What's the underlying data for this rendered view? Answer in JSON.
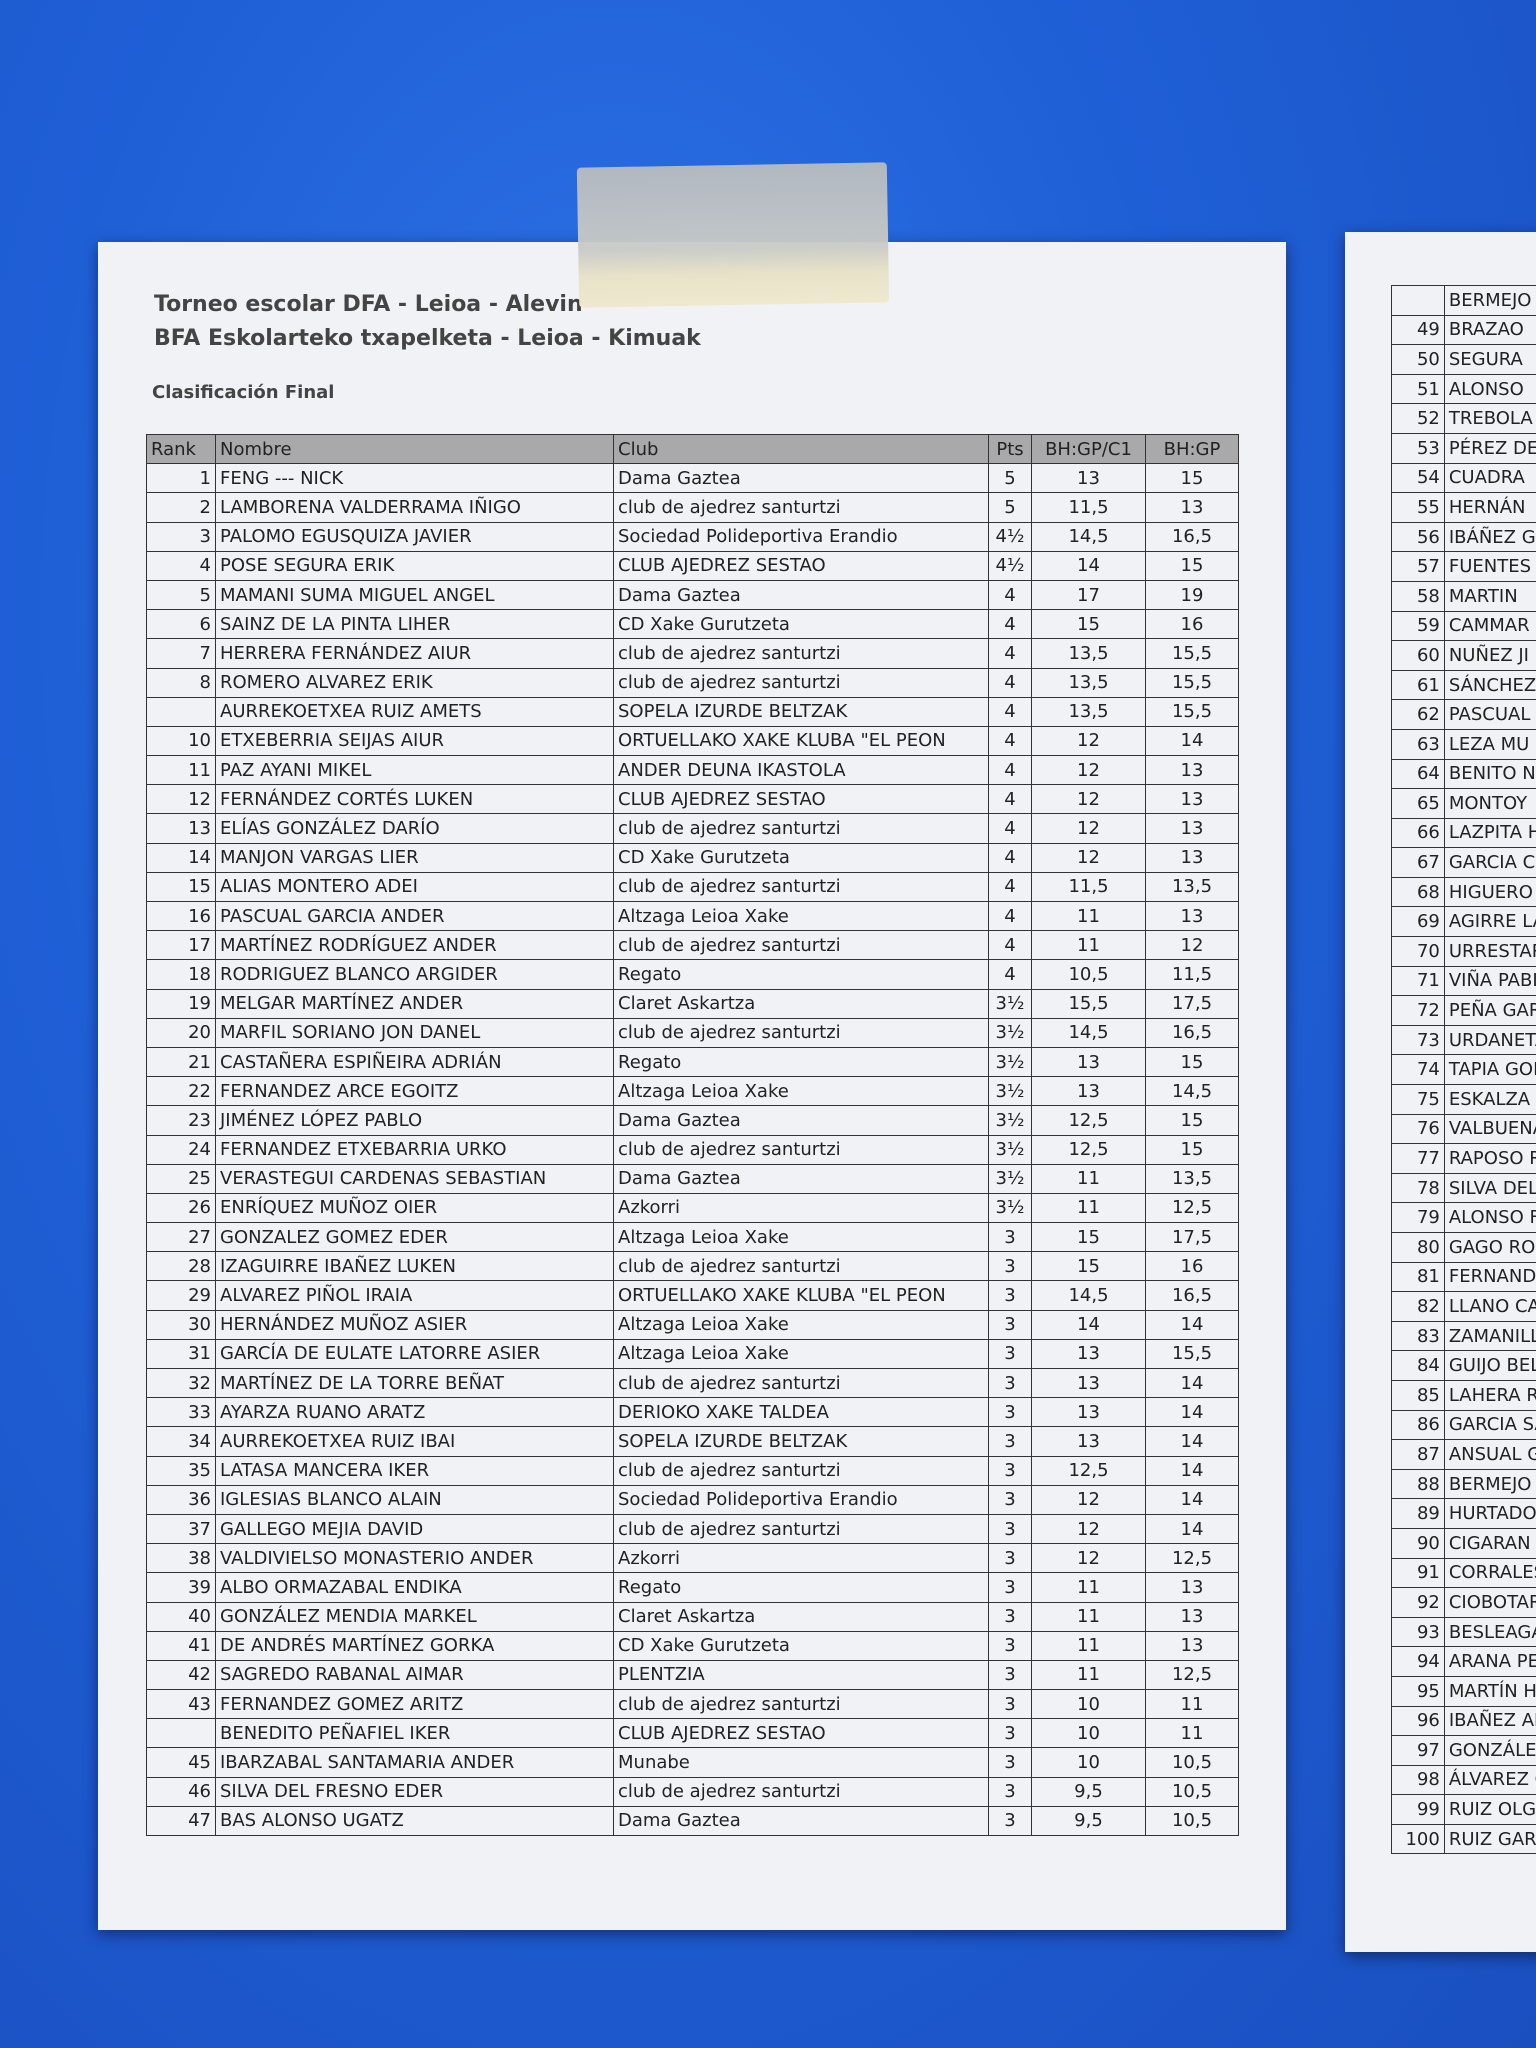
{
  "header": {
    "title": "Torneo escolar DFA - Leioa - Alevin",
    "subtitle": "BFA Eskolarteko txapelketa - Leioa - Kimuak",
    "section": "Clasificación Final"
  },
  "table": {
    "columns": [
      "Rank",
      "Nombre",
      "Club",
      "Pts",
      "BH:GP/C1",
      "BH:GP"
    ],
    "rows": [
      [
        1,
        "FENG --- NICK",
        "Dama Gaztea",
        5,
        13,
        15
      ],
      [
        2,
        "LAMBORENA VALDERRAMA IÑIGO",
        "club de ajedrez santurtzi",
        5,
        "11,5",
        13
      ],
      [
        3,
        "PALOMO EGUSQUIZA JAVIER",
        "Sociedad Polideportiva Erandio",
        "4½",
        "14,5",
        "16,5"
      ],
      [
        4,
        "POSE SEGURA ERIK",
        "CLUB AJEDREZ SESTAO",
        "4½",
        14,
        15
      ],
      [
        5,
        "MAMANI SUMA MIGUEL ANGEL",
        "Dama Gaztea",
        4,
        17,
        19
      ],
      [
        6,
        "SAINZ DE LA PINTA LIHER",
        "CD Xake Gurutzeta",
        4,
        15,
        16
      ],
      [
        7,
        "HERRERA FERNÁNDEZ AIUR",
        "club de ajedrez santurtzi",
        4,
        "13,5",
        "15,5"
      ],
      [
        8,
        "ROMERO ALVAREZ ERIK",
        "club de ajedrez santurtzi",
        4,
        "13,5",
        "15,5"
      ],
      [
        null,
        "AURREKOETXEA RUIZ AMETS",
        "SOPELA IZURDE BELTZAK",
        4,
        "13,5",
        "15,5"
      ],
      [
        10,
        "ETXEBERRIA SEIJAS AIUR",
        "ORTUELLAKO XAKE KLUBA \"EL PEON",
        4,
        12,
        14
      ],
      [
        11,
        "PAZ AYANI MIKEL",
        "ANDER DEUNA IKASTOLA",
        4,
        12,
        13
      ],
      [
        12,
        "FERNÁNDEZ CORTÉS LUKEN",
        "CLUB AJEDREZ SESTAO",
        4,
        12,
        13
      ],
      [
        13,
        "ELÍAS GONZÁLEZ DARÍO",
        "club de ajedrez santurtzi",
        4,
        12,
        13
      ],
      [
        14,
        "MANJON VARGAS LIER",
        "CD Xake Gurutzeta",
        4,
        12,
        13
      ],
      [
        15,
        "ALIAS MONTERO ADEI",
        "club de ajedrez santurtzi",
        4,
        "11,5",
        "13,5"
      ],
      [
        16,
        "PASCUAL GARCIA ANDER",
        "Altzaga Leioa Xake",
        4,
        11,
        13
      ],
      [
        17,
        "MARTÍNEZ RODRÍGUEZ ANDER",
        "club de ajedrez santurtzi",
        4,
        11,
        12
      ],
      [
        18,
        "RODRIGUEZ BLANCO ARGIDER",
        "Regato",
        4,
        "10,5",
        "11,5"
      ],
      [
        19,
        "MELGAR MARTÍNEZ ANDER",
        "Claret Askartza",
        "3½",
        "15,5",
        "17,5"
      ],
      [
        20,
        "MARFIL SORIANO JON DANEL",
        "club de ajedrez santurtzi",
        "3½",
        "14,5",
        "16,5"
      ],
      [
        21,
        "CASTAÑERA ESPIÑEIRA ADRIÁN",
        "Regato",
        "3½",
        13,
        15
      ],
      [
        22,
        "FERNANDEZ ARCE EGOITZ",
        "Altzaga Leioa Xake",
        "3½",
        13,
        "14,5"
      ],
      [
        23,
        "JIMÉNEZ LÓPEZ PABLO",
        "Dama Gaztea",
        "3½",
        "12,5",
        15
      ],
      [
        24,
        "FERNANDEZ ETXEBARRIA URKO",
        "club de ajedrez santurtzi",
        "3½",
        "12,5",
        15
      ],
      [
        25,
        "VERASTEGUI CARDENAS SEBASTIAN",
        "Dama Gaztea",
        "3½",
        11,
        "13,5"
      ],
      [
        26,
        "ENRÍQUEZ MUÑOZ OIER",
        "Azkorri",
        "3½",
        11,
        "12,5"
      ],
      [
        27,
        "GONZALEZ GOMEZ EDER",
        "Altzaga Leioa Xake",
        3,
        15,
        "17,5"
      ],
      [
        28,
        "IZAGUIRRE IBAÑEZ LUKEN",
        "club de ajedrez santurtzi",
        3,
        15,
        16
      ],
      [
        29,
        "ALVAREZ PIÑOL IRAIA",
        "ORTUELLAKO XAKE KLUBA \"EL PEON",
        3,
        "14,5",
        "16,5"
      ],
      [
        30,
        "HERNÁNDEZ MUÑOZ ASIER",
        "Altzaga Leioa Xake",
        3,
        14,
        14
      ],
      [
        31,
        "GARCÍA DE EULATE LATORRE ASIER",
        "Altzaga Leioa Xake",
        3,
        13,
        "15,5"
      ],
      [
        32,
        "MARTÍNEZ DE LA TORRE BEÑAT",
        "club de ajedrez santurtzi",
        3,
        13,
        14
      ],
      [
        33,
        "AYARZA RUANO ARATZ",
        "DERIOKO XAKE TALDEA",
        3,
        13,
        14
      ],
      [
        34,
        "AURREKOETXEA RUIZ IBAI",
        "SOPELA IZURDE BELTZAK",
        3,
        13,
        14
      ],
      [
        35,
        "LATASA MANCERA IKER",
        "club de ajedrez santurtzi",
        3,
        "12,5",
        14
      ],
      [
        36,
        "IGLESIAS BLANCO ALAIN",
        "Sociedad Polideportiva Erandio",
        3,
        12,
        14
      ],
      [
        37,
        "GALLEGO MEJIA DAVID",
        "club de ajedrez santurtzi",
        3,
        12,
        14
      ],
      [
        38,
        "VALDIVIELSO MONASTERIO ANDER",
        "Azkorri",
        3,
        12,
        "12,5"
      ],
      [
        39,
        "ALBO ORMAZABAL ENDIKA",
        "Regato",
        3,
        11,
        13
      ],
      [
        40,
        "GONZÁLEZ MENDIA MARKEL",
        "Claret Askartza",
        3,
        11,
        13
      ],
      [
        41,
        "DE ANDRÉS MARTÍNEZ GORKA",
        "CD Xake Gurutzeta",
        3,
        11,
        13
      ],
      [
        42,
        "SAGREDO RABANAL AIMAR",
        "PLENTZIA",
        3,
        11,
        "12,5"
      ],
      [
        43,
        "FERNANDEZ GOMEZ ARITZ",
        "club de ajedrez santurtzi",
        3,
        10,
        11
      ],
      [
        null,
        "BENEDITO PEÑAFIEL IKER",
        "CLUB AJEDREZ SESTAO",
        3,
        10,
        11
      ],
      [
        45,
        "IBARZABAL SANTAMARIA ANDER",
        "Munabe",
        3,
        10,
        "10,5"
      ],
      [
        46,
        "SILVA DEL FRESNO EDER",
        "club de ajedrez santurtzi",
        3,
        "9,5",
        "10,5"
      ],
      [
        47,
        "BAS ALONSO UGATZ",
        "Dama Gaztea",
        3,
        "9,5",
        "10,5"
      ]
    ]
  },
  "second_sheet": {
    "rows": [
      [
        null,
        "BERMEJO"
      ],
      [
        49,
        "BRAZAO"
      ],
      [
        50,
        "SEGURA"
      ],
      [
        51,
        "ALONSO"
      ],
      [
        52,
        "TREBOLA"
      ],
      [
        53,
        "PÉREZ DE"
      ],
      [
        54,
        "CUADRA"
      ],
      [
        55,
        "HERNÁN"
      ],
      [
        56,
        "IBÁÑEZ G"
      ],
      [
        57,
        "FUENTES"
      ],
      [
        58,
        "MARTIN"
      ],
      [
        59,
        "CAMMAR"
      ],
      [
        60,
        "NUÑEZ JI"
      ],
      [
        61,
        "SÁNCHEZ"
      ],
      [
        62,
        "PASCUAL"
      ],
      [
        63,
        "LEZA MU"
      ],
      [
        64,
        "BENITO N"
      ],
      [
        65,
        "MONTOY"
      ],
      [
        66,
        "LAZPITA H"
      ],
      [
        67,
        "GARCIA C"
      ],
      [
        68,
        "HIGUERO"
      ],
      [
        69,
        "AGIRRE LA"
      ],
      [
        70,
        "URRESTAR"
      ],
      [
        71,
        "VIÑA PABL"
      ],
      [
        72,
        "PEÑA GAR"
      ],
      [
        73,
        "URDANETA"
      ],
      [
        74,
        "TAPIA GON"
      ],
      [
        75,
        "ESKALZA F"
      ],
      [
        76,
        "VALBUENA"
      ],
      [
        77,
        "RAPOSO R"
      ],
      [
        78,
        "SILVA DEL"
      ],
      [
        79,
        "ALONSO FI"
      ],
      [
        80,
        "GAGO ROD"
      ],
      [
        81,
        "FERNANDE"
      ],
      [
        82,
        "LLANO CAN"
      ],
      [
        83,
        "ZAMANILLO"
      ],
      [
        84,
        "GUIJO BELT"
      ],
      [
        85,
        "LAHERA RE"
      ],
      [
        86,
        "GARCIA SA"
      ],
      [
        87,
        "ANSUAL GO"
      ],
      [
        88,
        "BERMEJO B"
      ],
      [
        89,
        "HURTADO I"
      ],
      [
        90,
        "CIGARAN ."
      ],
      [
        91,
        "CORRALES I"
      ],
      [
        92,
        "CIOBOTARU"
      ],
      [
        93,
        "BESLEAGA I"
      ],
      [
        94,
        "ARANA PER"
      ],
      [
        95,
        "MARTÍN HO"
      ],
      [
        96,
        "IBAÑEZ ALI"
      ],
      [
        97,
        "GONZÁLEZ ("
      ],
      [
        98,
        "ÁLVAREZ GO"
      ],
      [
        99,
        "RUIZ OLGOS"
      ],
      [
        100,
        "RUIZ GARCI"
      ]
    ]
  }
}
